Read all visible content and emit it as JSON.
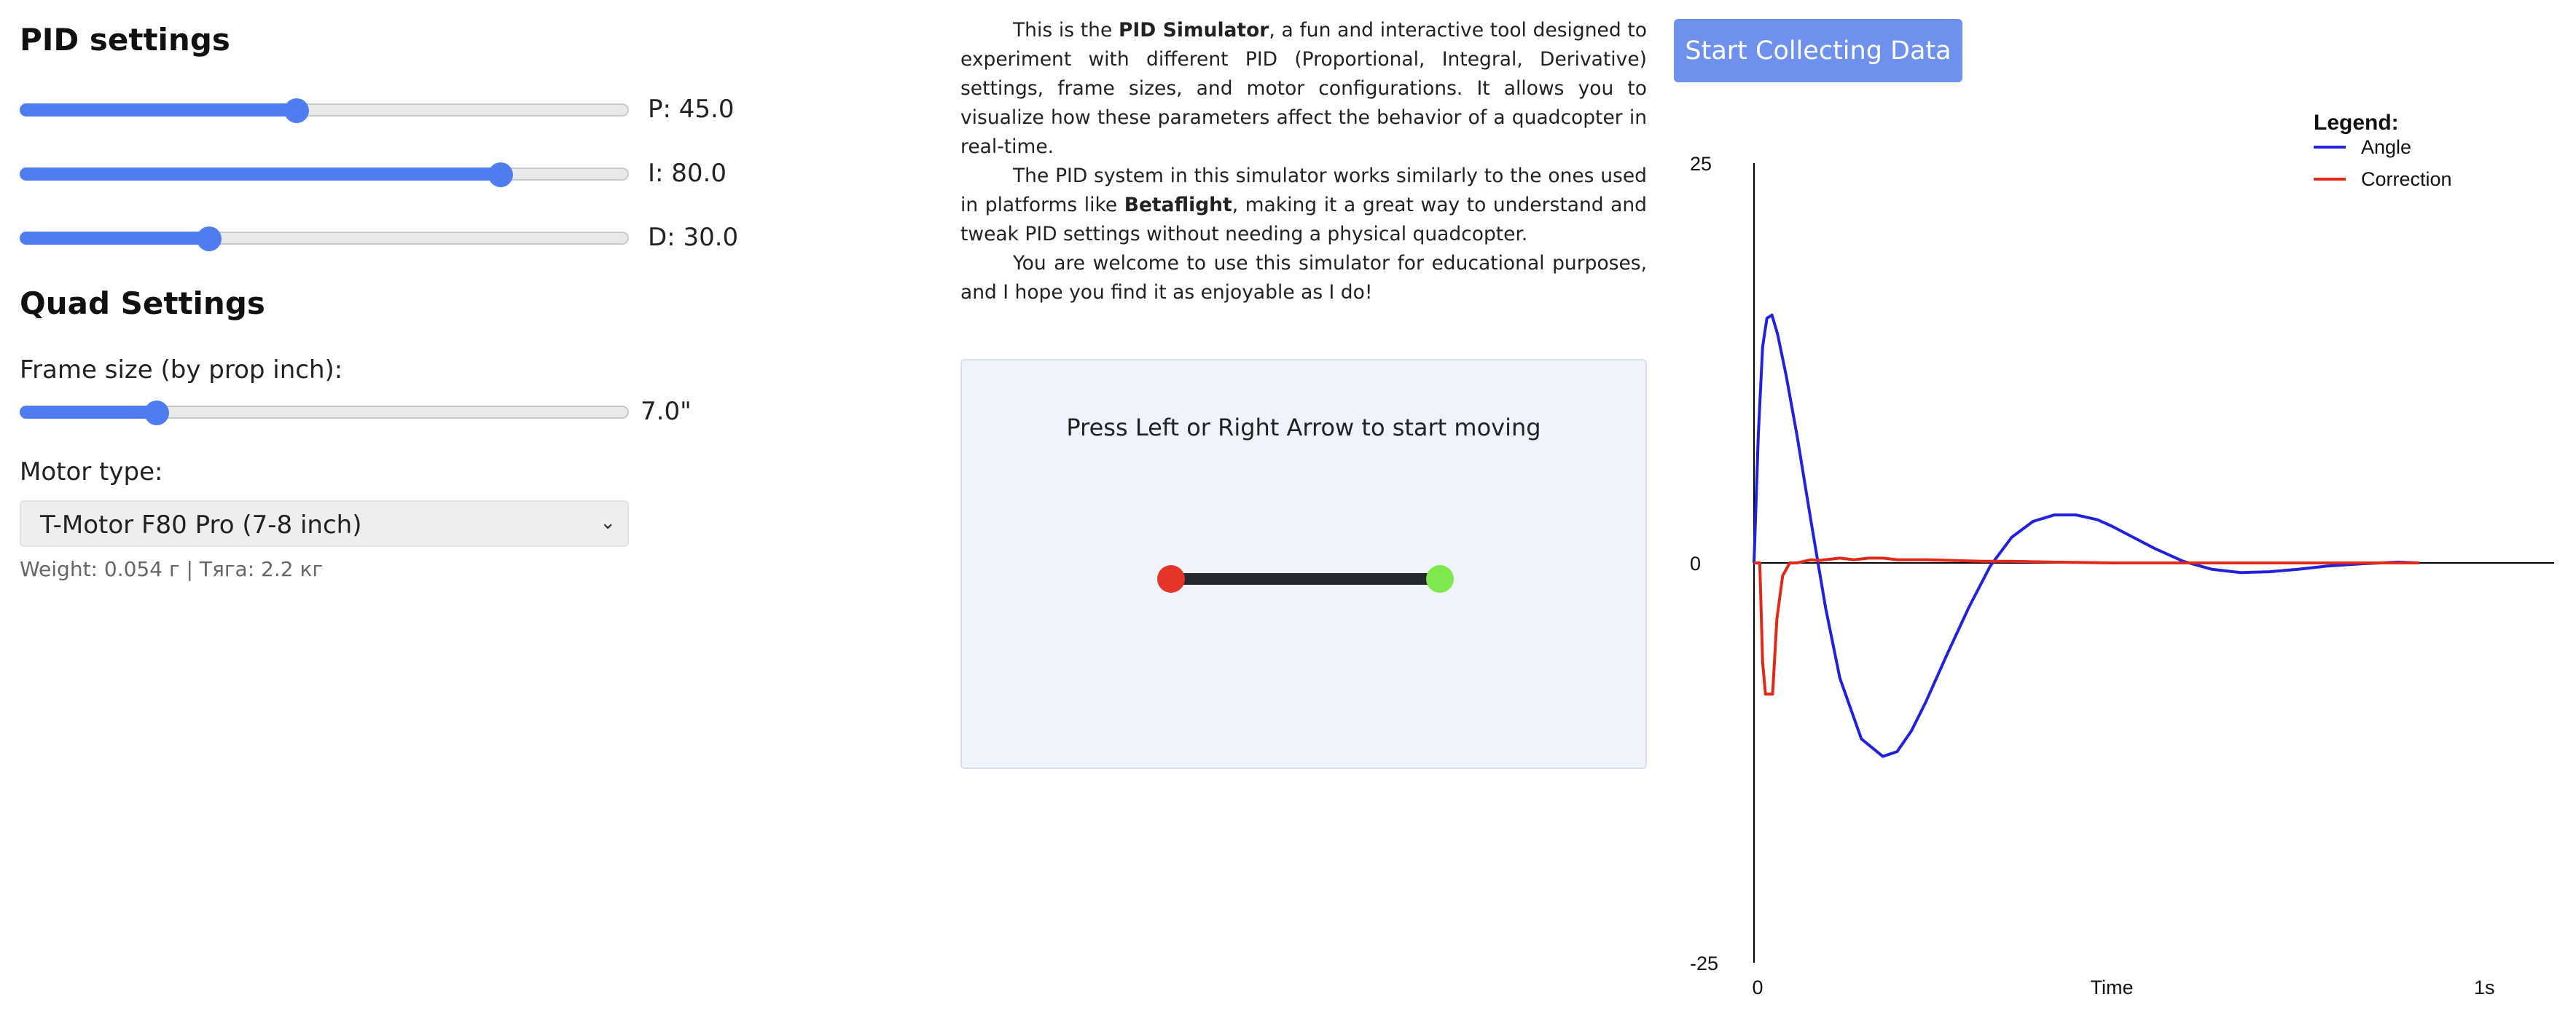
{
  "pid": {
    "title": "PID settings",
    "sliders": [
      {
        "label": "P: 45.0",
        "value": 45,
        "min": 0,
        "max": 100
      },
      {
        "label": "I: 80.0",
        "value": 80,
        "min": 0,
        "max": 100
      },
      {
        "label": "D: 30.0",
        "value": 30,
        "min": 0,
        "max": 100
      }
    ]
  },
  "quad": {
    "title": "Quad Settings",
    "frame_label": "Frame size (by prop inch):",
    "frame_value": "7.0\"",
    "frame_fraction": 0.21,
    "motor_label": "Motor type:",
    "motor_selected": "T-Motor F80 Pro (7-8 inch)",
    "motor_note": "Weight: 0.054 г | Тяга: 2.2 кг"
  },
  "intro": {
    "p1_pre": "This is the ",
    "p1_bold": "PID Simulator",
    "p1_post": ", a fun and interactive tool designed to experiment with different PID (Proportional, Integral, Derivative) settings, frame sizes, and motor configurations. It allows you to visualize how these parameters affect the behavior of a quadcopter in real-time.",
    "p2_pre": "The PID system in this simulator works similarly to the ones used in platforms like ",
    "p2_bold": "Betaflight",
    "p2_post": ", making it a great way to understand and tweak PID settings without needing a physical quadcopter.",
    "p3": "You are welcome to use this simulator for educational purposes, and I hope you find it as enjoyable as I do!"
  },
  "simulator": {
    "hint": "Press Left or Right Arrow to start moving",
    "left_color": "#e53528",
    "right_color": "#7de94c"
  },
  "button": {
    "label": "Start Collecting Data"
  },
  "chart_data": {
    "type": "line",
    "title": "",
    "legend_title": "Legend:",
    "legend_position": "top-right",
    "xlabel": "Time",
    "ylabel": "",
    "xlim": [
      0,
      1
    ],
    "ylim": [
      -25,
      25
    ],
    "y_tick_labels": [
      "25",
      "0",
      "-25"
    ],
    "x_tick_labels": [
      "0",
      "Time",
      "1s"
    ],
    "series": [
      {
        "name": "Angle",
        "color": "#2222dd",
        "x": [
          0.0,
          0.006,
          0.012,
          0.018,
          0.025,
          0.033,
          0.045,
          0.06,
          0.08,
          0.1,
          0.12,
          0.15,
          0.18,
          0.2,
          0.22,
          0.24,
          0.27,
          0.3,
          0.33,
          0.36,
          0.39,
          0.42,
          0.45,
          0.48,
          0.5,
          0.53,
          0.56,
          0.6,
          0.64,
          0.68,
          0.72,
          0.76,
          0.8,
          0.85,
          0.9,
          0.93
        ],
        "y": [
          0.0,
          8.0,
          13.5,
          15.3,
          15.5,
          14.3,
          11.7,
          8.0,
          2.5,
          -2.8,
          -7.2,
          -11.0,
          -12.1,
          -11.8,
          -10.5,
          -8.7,
          -5.7,
          -2.8,
          -0.2,
          1.6,
          2.6,
          3.0,
          3.0,
          2.7,
          2.3,
          1.6,
          0.9,
          0.1,
          -0.4,
          -0.6,
          -0.55,
          -0.4,
          -0.2,
          -0.05,
          0.05,
          0.0
        ]
      },
      {
        "name": "Correction",
        "color": "#e02a1a",
        "x": [
          0.0,
          0.008,
          0.012,
          0.016,
          0.02,
          0.026,
          0.032,
          0.04,
          0.05,
          0.06,
          0.07,
          0.08,
          0.09,
          0.1,
          0.12,
          0.14,
          0.16,
          0.18,
          0.2,
          0.24,
          0.28,
          0.32,
          0.36,
          0.42,
          0.5,
          0.6,
          0.7,
          0.8,
          0.93
        ],
        "y": [
          0.0,
          0.0,
          -6.2,
          -8.2,
          -8.2,
          -8.2,
          -3.5,
          -0.8,
          0.0,
          0.0,
          0.1,
          0.2,
          0.15,
          0.2,
          0.3,
          0.2,
          0.3,
          0.3,
          0.2,
          0.2,
          0.15,
          0.1,
          0.1,
          0.05,
          0.0,
          0.0,
          0.0,
          0.0,
          0.0
        ]
      }
    ]
  }
}
